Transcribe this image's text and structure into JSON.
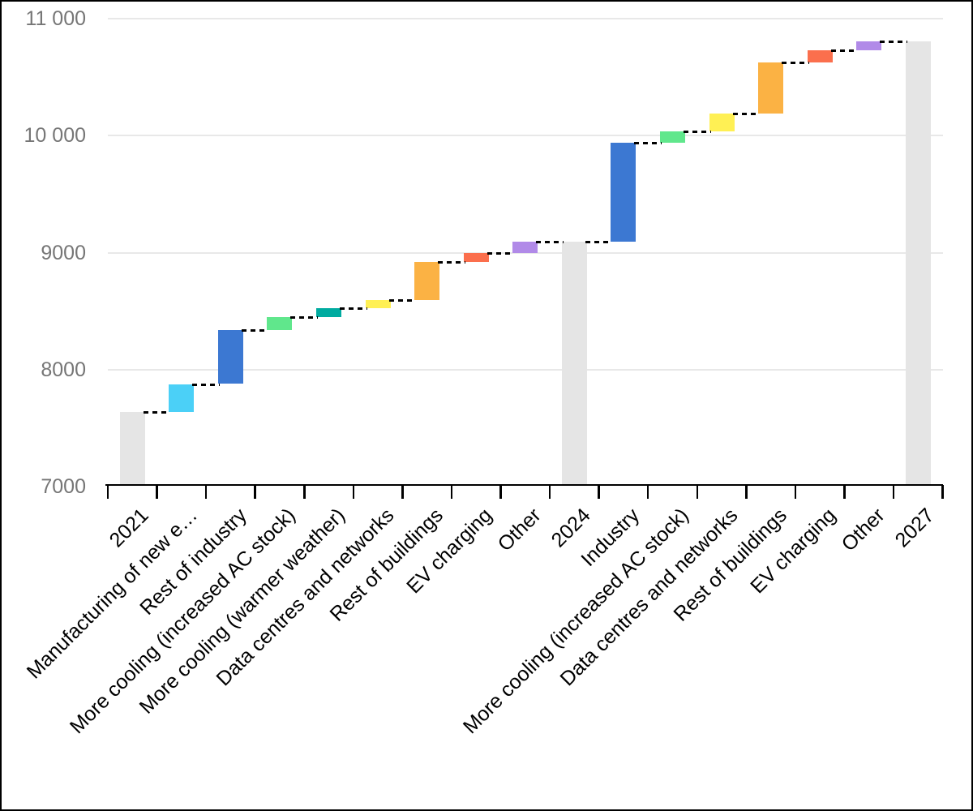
{
  "page": {
    "background": "#FFFFFF",
    "border_color": "#000000"
  },
  "chart_data": {
    "type": "bar",
    "subtype": "waterfall",
    "title": "",
    "categories": [
      "2021",
      "Manufacturing of new e…",
      "Rest of industry",
      "More cooling (increased AC stock)",
      "More cooling (warmer weather)",
      "Data centres and networks",
      "Rest of buildings",
      "EV charging",
      "Other",
      "2024",
      "Industry",
      "More cooling (increased AC stock)",
      "Data centres and networks",
      "Rest of buildings",
      "EV charging",
      "Other",
      "2027"
    ],
    "bars": [
      {
        "label": "2021",
        "kind": "total",
        "start": 7000,
        "end": 7630,
        "color": "#E5E5E5"
      },
      {
        "label": "Manufacturing of new e…",
        "kind": "increase",
        "start": 7630,
        "end": 7870,
        "delta": 240,
        "color": "#4BD0F7"
      },
      {
        "label": "Rest of industry",
        "kind": "increase",
        "start": 7870,
        "end": 8330,
        "delta": 460,
        "color": "#3C78D2"
      },
      {
        "label": "More cooling (increased AC stock)",
        "kind": "increase",
        "start": 8330,
        "end": 8440,
        "delta": 110,
        "color": "#60E78C"
      },
      {
        "label": "More cooling (warmer weather)",
        "kind": "increase",
        "start": 8440,
        "end": 8520,
        "delta": 80,
        "color": "#00ABA0"
      },
      {
        "label": "Data centres and networks",
        "kind": "increase",
        "start": 8520,
        "end": 8590,
        "delta": 70,
        "color": "#FFF054"
      },
      {
        "label": "Rest of buildings",
        "kind": "increase",
        "start": 8590,
        "end": 8910,
        "delta": 320,
        "color": "#FBB244"
      },
      {
        "label": "EV charging",
        "kind": "increase",
        "start": 8910,
        "end": 8990,
        "delta": 80,
        "color": "#FB6F4D"
      },
      {
        "label": "Other",
        "kind": "increase",
        "start": 8990,
        "end": 9090,
        "delta": 100,
        "color": "#B18AE8"
      },
      {
        "label": "2024",
        "kind": "total",
        "start": 7000,
        "end": 9090,
        "color": "#E5E5E5"
      },
      {
        "label": "Industry",
        "kind": "increase",
        "start": 9090,
        "end": 9930,
        "delta": 840,
        "color": "#3C78D2"
      },
      {
        "label": "More cooling (increased AC stock)",
        "kind": "increase",
        "start": 9930,
        "end": 10030,
        "delta": 100,
        "color": "#60E78C"
      },
      {
        "label": "Data centres and networks",
        "kind": "increase",
        "start": 10030,
        "end": 10180,
        "delta": 150,
        "color": "#FFF054"
      },
      {
        "label": "Rest of buildings",
        "kind": "increase",
        "start": 10180,
        "end": 10620,
        "delta": 440,
        "color": "#FBB244"
      },
      {
        "label": "EV charging",
        "kind": "increase",
        "start": 10620,
        "end": 10720,
        "delta": 100,
        "color": "#FB6F4D"
      },
      {
        "label": "Other",
        "kind": "increase",
        "start": 10720,
        "end": 10800,
        "delta": 80,
        "color": "#B18AE8"
      },
      {
        "label": "2027",
        "kind": "total",
        "start": 7000,
        "end": 10800,
        "color": "#E5E5E5"
      }
    ],
    "y_axis": {
      "min": 7000,
      "max": 11000,
      "tick_values": [
        11000,
        10000,
        9000,
        8000,
        7000
      ],
      "tick_labels": [
        "11 000",
        "10 000",
        "9000",
        "8000",
        "7000"
      ],
      "label_color": "#767676"
    },
    "x_axis": {
      "line_color": "#000000",
      "label_color": "#000000",
      "label_rotation_deg": -45
    },
    "grid": {
      "show": true,
      "color": "#E8E8E8"
    },
    "connectors": {
      "style": "dashed",
      "color": "#000000"
    },
    "legend": {
      "show": false
    }
  }
}
